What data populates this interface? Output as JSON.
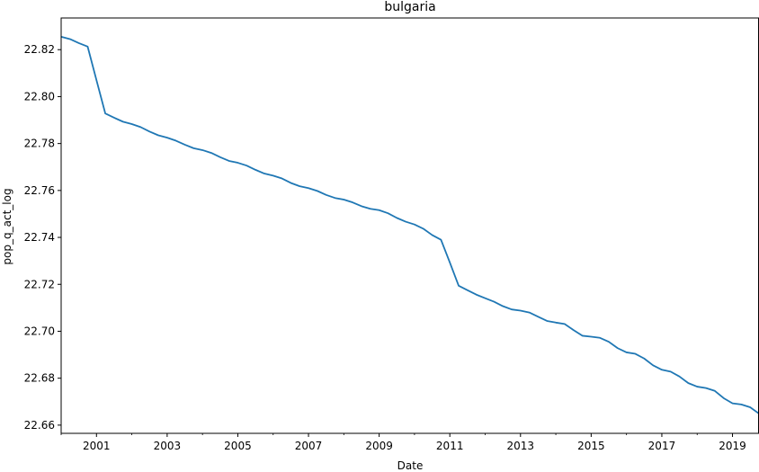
{
  "chart_data": {
    "type": "line",
    "title": "bulgaria",
    "xlabel": "Date",
    "ylabel": "pop_q_act_log",
    "grid": false,
    "legend": "none",
    "xlim": [
      "2000-01",
      "2019-10"
    ],
    "ylim": [
      22.6565,
      22.8335
    ],
    "x_ticks": [
      "2001",
      "2003",
      "2005",
      "2007",
      "2009",
      "2011",
      "2013",
      "2015",
      "2017",
      "2019"
    ],
    "x_minor_ticks": [
      "2000",
      "2002",
      "2004",
      "2006",
      "2008",
      "2010",
      "2012",
      "2014",
      "2016",
      "2018"
    ],
    "y_ticks": [
      "22.66",
      "22.68",
      "22.70",
      "22.72",
      "22.74",
      "22.76",
      "22.78",
      "22.80",
      "22.82"
    ],
    "colors": {
      "line": "#1f77b4",
      "axes": "#000000",
      "background": "#ffffff"
    },
    "series": [
      {
        "values": [
          [
            "2000-01",
            22.8255
          ],
          [
            "2000-04",
            22.8245
          ],
          [
            "2000-07",
            22.8228
          ],
          [
            "2000-10",
            22.8213
          ],
          [
            "2001-01",
            22.807
          ],
          [
            "2001-04",
            22.7928
          ],
          [
            "2001-07",
            22.791
          ],
          [
            "2001-10",
            22.7893
          ],
          [
            "2002-01",
            22.7883
          ],
          [
            "2002-04",
            22.787
          ],
          [
            "2002-07",
            22.7851
          ],
          [
            "2002-10",
            22.7835
          ],
          [
            "2003-01",
            22.7825
          ],
          [
            "2003-04",
            22.7812
          ],
          [
            "2003-07",
            22.7795
          ],
          [
            "2003-10",
            22.778
          ],
          [
            "2004-01",
            22.7772
          ],
          [
            "2004-04",
            22.776
          ],
          [
            "2004-07",
            22.7742
          ],
          [
            "2004-10",
            22.7726
          ],
          [
            "2005-01",
            22.7718
          ],
          [
            "2005-04",
            22.7706
          ],
          [
            "2005-07",
            22.7688
          ],
          [
            "2005-10",
            22.7672
          ],
          [
            "2006-01",
            22.7663
          ],
          [
            "2006-04",
            22.7651
          ],
          [
            "2006-07",
            22.7632
          ],
          [
            "2006-10",
            22.7618
          ],
          [
            "2007-01",
            22.761
          ],
          [
            "2007-04",
            22.7598
          ],
          [
            "2007-07",
            22.7581
          ],
          [
            "2007-10",
            22.7568
          ],
          [
            "2008-01",
            22.7561
          ],
          [
            "2008-04",
            22.7549
          ],
          [
            "2008-07",
            22.7533
          ],
          [
            "2008-10",
            22.7522
          ],
          [
            "2009-01",
            22.7516
          ],
          [
            "2009-04",
            22.7503
          ],
          [
            "2009-07",
            22.7483
          ],
          [
            "2009-10",
            22.7467
          ],
          [
            "2010-01",
            22.7455
          ],
          [
            "2010-04",
            22.7437
          ],
          [
            "2010-07",
            22.741
          ],
          [
            "2010-10",
            22.739
          ],
          [
            "2011-01",
            22.7293
          ],
          [
            "2011-04",
            22.7194
          ],
          [
            "2011-07",
            22.7175
          ],
          [
            "2011-10",
            22.7156
          ],
          [
            "2012-01",
            22.7141
          ],
          [
            "2012-04",
            22.7126
          ],
          [
            "2012-07",
            22.7107
          ],
          [
            "2012-10",
            22.7093
          ],
          [
            "2013-01",
            22.7088
          ],
          [
            "2013-04",
            22.708
          ],
          [
            "2013-07",
            22.7062
          ],
          [
            "2013-10",
            22.7044
          ],
          [
            "2014-01",
            22.7037
          ],
          [
            "2014-04",
            22.7031
          ],
          [
            "2014-07",
            22.7005
          ],
          [
            "2014-10",
            22.6981
          ],
          [
            "2015-01",
            22.6977
          ],
          [
            "2015-04",
            22.6972
          ],
          [
            "2015-07",
            22.6955
          ],
          [
            "2015-10",
            22.6928
          ],
          [
            "2016-01",
            22.691
          ],
          [
            "2016-04",
            22.6904
          ],
          [
            "2016-07",
            22.6884
          ],
          [
            "2016-10",
            22.6855
          ],
          [
            "2017-01",
            22.6836
          ],
          [
            "2017-04",
            22.6828
          ],
          [
            "2017-07",
            22.6807
          ],
          [
            "2017-10",
            22.6779
          ],
          [
            "2018-01",
            22.6764
          ],
          [
            "2018-04",
            22.6758
          ],
          [
            "2018-07",
            22.6746
          ],
          [
            "2018-10",
            22.6715
          ],
          [
            "2019-01",
            22.6693
          ],
          [
            "2019-04",
            22.6688
          ],
          [
            "2019-07",
            22.6676
          ],
          [
            "2019-10",
            22.6649
          ]
        ]
      }
    ]
  }
}
